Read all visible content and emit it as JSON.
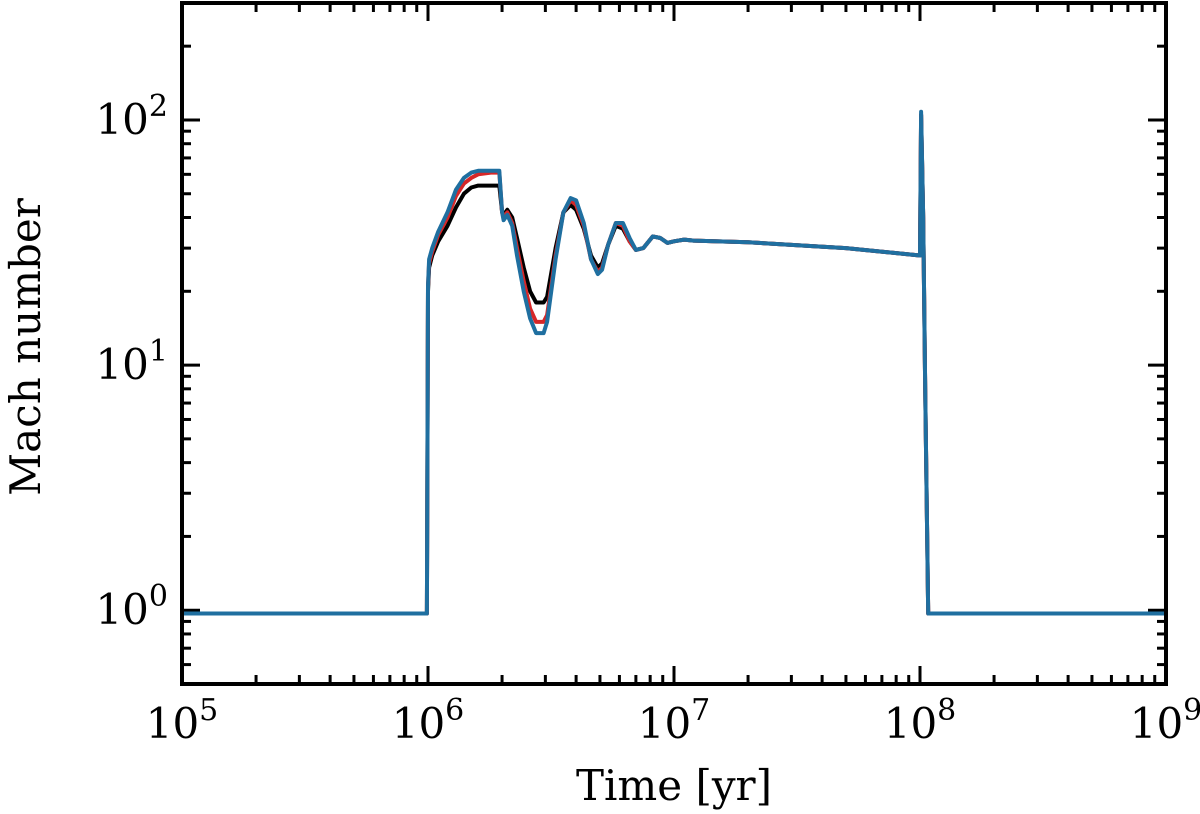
{
  "chart_data": {
    "type": "line",
    "xlabel": "Time [yr]",
    "ylabel": "Mach number",
    "xscale": "log",
    "yscale": "log",
    "xlim": [
      100000,
      1000000000
    ],
    "ylim": [
      0.5,
      300
    ],
    "grid": false,
    "x_ticks": [
      {
        "value": 100000,
        "base": "10",
        "exp": "5"
      },
      {
        "value": 1000000,
        "base": "10",
        "exp": "6"
      },
      {
        "value": 10000000,
        "base": "10",
        "exp": "7"
      },
      {
        "value": 100000000,
        "base": "10",
        "exp": "8"
      },
      {
        "value": 1000000000,
        "base": "10",
        "exp": "9"
      }
    ],
    "y_ticks": [
      {
        "value": 1,
        "base": "10",
        "exp": "0"
      },
      {
        "value": 10,
        "base": "10",
        "exp": "1"
      },
      {
        "value": 100,
        "base": "10",
        "exp": "2"
      }
    ],
    "series": [
      {
        "color": "#000000",
        "x": [
          100000,
          990000,
          1000000,
          1010000,
          1040000,
          1100000,
          1200000,
          1300000,
          1400000,
          1500000,
          1600000,
          1800000,
          1950000,
          2000000,
          2030000,
          2100000,
          2200000,
          2300000,
          2450000,
          2600000,
          2750000,
          2950000,
          3050000,
          3300000,
          3550000,
          3800000,
          4000000,
          4300000,
          4600000,
          4900000,
          5100000,
          5400000,
          5800000,
          6200000,
          6600000,
          7000000,
          7500000,
          8200000,
          8800000,
          9400000,
          10000000,
          11000000,
          12000000,
          20000000,
          50000000,
          100000000,
          101000000,
          103000000,
          105000000,
          108000000,
          1000000000
        ],
        "y": [
          0.97,
          0.97,
          20,
          25,
          28,
          32,
          37,
          44,
          50,
          53,
          54,
          54,
          54,
          42,
          41,
          43,
          40,
          33,
          25,
          20,
          18,
          18,
          19,
          30,
          42,
          45,
          43,
          36,
          28,
          25,
          26,
          31,
          37,
          36,
          32,
          29.5,
          30,
          33.5,
          33,
          31.5,
          32,
          32.5,
          32.2,
          31.7,
          30,
          28,
          105,
          40,
          8,
          0.97,
          0.97
        ]
      },
      {
        "color": "#d62728",
        "x": [
          100000,
          990000,
          1000000,
          1010000,
          1040000,
          1100000,
          1200000,
          1300000,
          1400000,
          1500000,
          1600000,
          1800000,
          1950000,
          2000000,
          2030000,
          2100000,
          2200000,
          2300000,
          2450000,
          2600000,
          2750000,
          2950000,
          3050000,
          3300000,
          3550000,
          3800000,
          4000000,
          4300000,
          4600000,
          4900000,
          5100000,
          5400000,
          5800000,
          6200000,
          6600000,
          7000000,
          7500000,
          8200000,
          8800000,
          9400000,
          10000000,
          11000000,
          12000000,
          20000000,
          50000000,
          100000000,
          101000000,
          103000000,
          105000000,
          108000000,
          1000000000
        ],
        "y": [
          0.97,
          0.97,
          21,
          26,
          29,
          34,
          40,
          49,
          55,
          58,
          60,
          61,
          61,
          42,
          40,
          42,
          38,
          30,
          22,
          17,
          15,
          15,
          16,
          28,
          42,
          47,
          45,
          37,
          27,
          24,
          25,
          31,
          38,
          37,
          32,
          29.5,
          30,
          33.5,
          33,
          31.5,
          32,
          32.5,
          32.2,
          31.7,
          30,
          28,
          105,
          40,
          8,
          0.97,
          0.97
        ]
      },
      {
        "color": "#1f6fa0",
        "x": [
          100000,
          990000,
          1000000,
          1010000,
          1040000,
          1100000,
          1200000,
          1300000,
          1400000,
          1500000,
          1600000,
          1800000,
          1950000,
          2000000,
          2030000,
          2100000,
          2200000,
          2300000,
          2450000,
          2600000,
          2750000,
          2950000,
          3050000,
          3300000,
          3550000,
          3800000,
          4000000,
          4300000,
          4600000,
          4900000,
          5100000,
          5400000,
          5800000,
          6200000,
          6600000,
          7000000,
          7500000,
          8200000,
          8800000,
          9400000,
          10000000,
          11000000,
          12000000,
          20000000,
          50000000,
          100000000,
          101000000,
          103000000,
          105000000,
          108000000,
          1000000000
        ],
        "y": [
          0.97,
          0.97,
          21,
          27,
          30,
          35,
          42,
          52,
          58,
          61,
          62,
          62,
          62,
          42,
          39,
          41,
          37,
          28,
          20,
          15.5,
          13.5,
          13.5,
          15,
          27,
          42,
          48,
          47,
          38,
          27,
          23.5,
          24.5,
          31,
          38,
          38,
          33,
          29.5,
          30,
          33.5,
          33,
          31.5,
          32,
          32.5,
          32.2,
          31.7,
          30,
          28,
          108,
          40,
          8,
          0.97,
          0.97
        ]
      }
    ]
  }
}
